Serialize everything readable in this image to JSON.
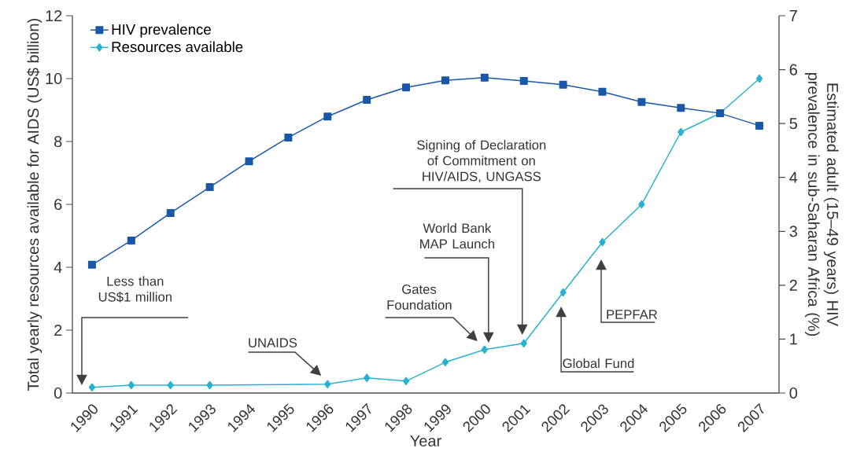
{
  "chart_data": {
    "type": "line",
    "xlabel": "Year",
    "ylabel": "Total yearly resources available for AIDS (US$ billion)",
    "y2label": "Estimated adult (15–49 years) HIV prevalence in sub-Saharan Africa (%)",
    "categories": [
      "1990",
      "1991",
      "1992",
      "1993",
      "1994",
      "1995",
      "1996",
      "1997",
      "1998",
      "1999",
      "2000",
      "2001",
      "2002",
      "2003",
      "2004",
      "2005",
      "2006",
      "2007"
    ],
    "series": [
      {
        "name": "HIV prevalence",
        "color": "#1a57a8",
        "axis": "y2",
        "marker": "square",
        "values": [
          2.38,
          2.83,
          3.34,
          3.82,
          4.3,
          4.74,
          5.13,
          5.44,
          5.67,
          5.8,
          5.85,
          5.79,
          5.72,
          5.59,
          5.4,
          5.29,
          5.19,
          4.96
        ]
      },
      {
        "name": "Resources available",
        "color": "#27b2d0",
        "marker": "diamond",
        "values": [
          0.18,
          0.25,
          0.25,
          0.25,
          null,
          null,
          0.28,
          0.48,
          0.38,
          0.98,
          1.38,
          1.58,
          3.2,
          4.8,
          6.0,
          8.3,
          8.9,
          10.0
        ]
      }
    ],
    "ylim": [
      0,
      12
    ],
    "yticks": [
      0,
      2,
      4,
      6,
      8,
      10,
      12
    ],
    "y2lim": [
      0,
      7
    ],
    "y2ticks": [
      0,
      1,
      2,
      3,
      4,
      5,
      6,
      7
    ],
    "legend": "top left",
    "grid": false,
    "annotations": [
      "Less than US$1 million",
      "UNAIDS",
      "Gates Foundation",
      "World Bank MAP Launch",
      "Signing of Declaration of Commitment on HIV/AIDS, UNGASS",
      "Global Fund",
      "PEPFAR"
    ]
  }
}
